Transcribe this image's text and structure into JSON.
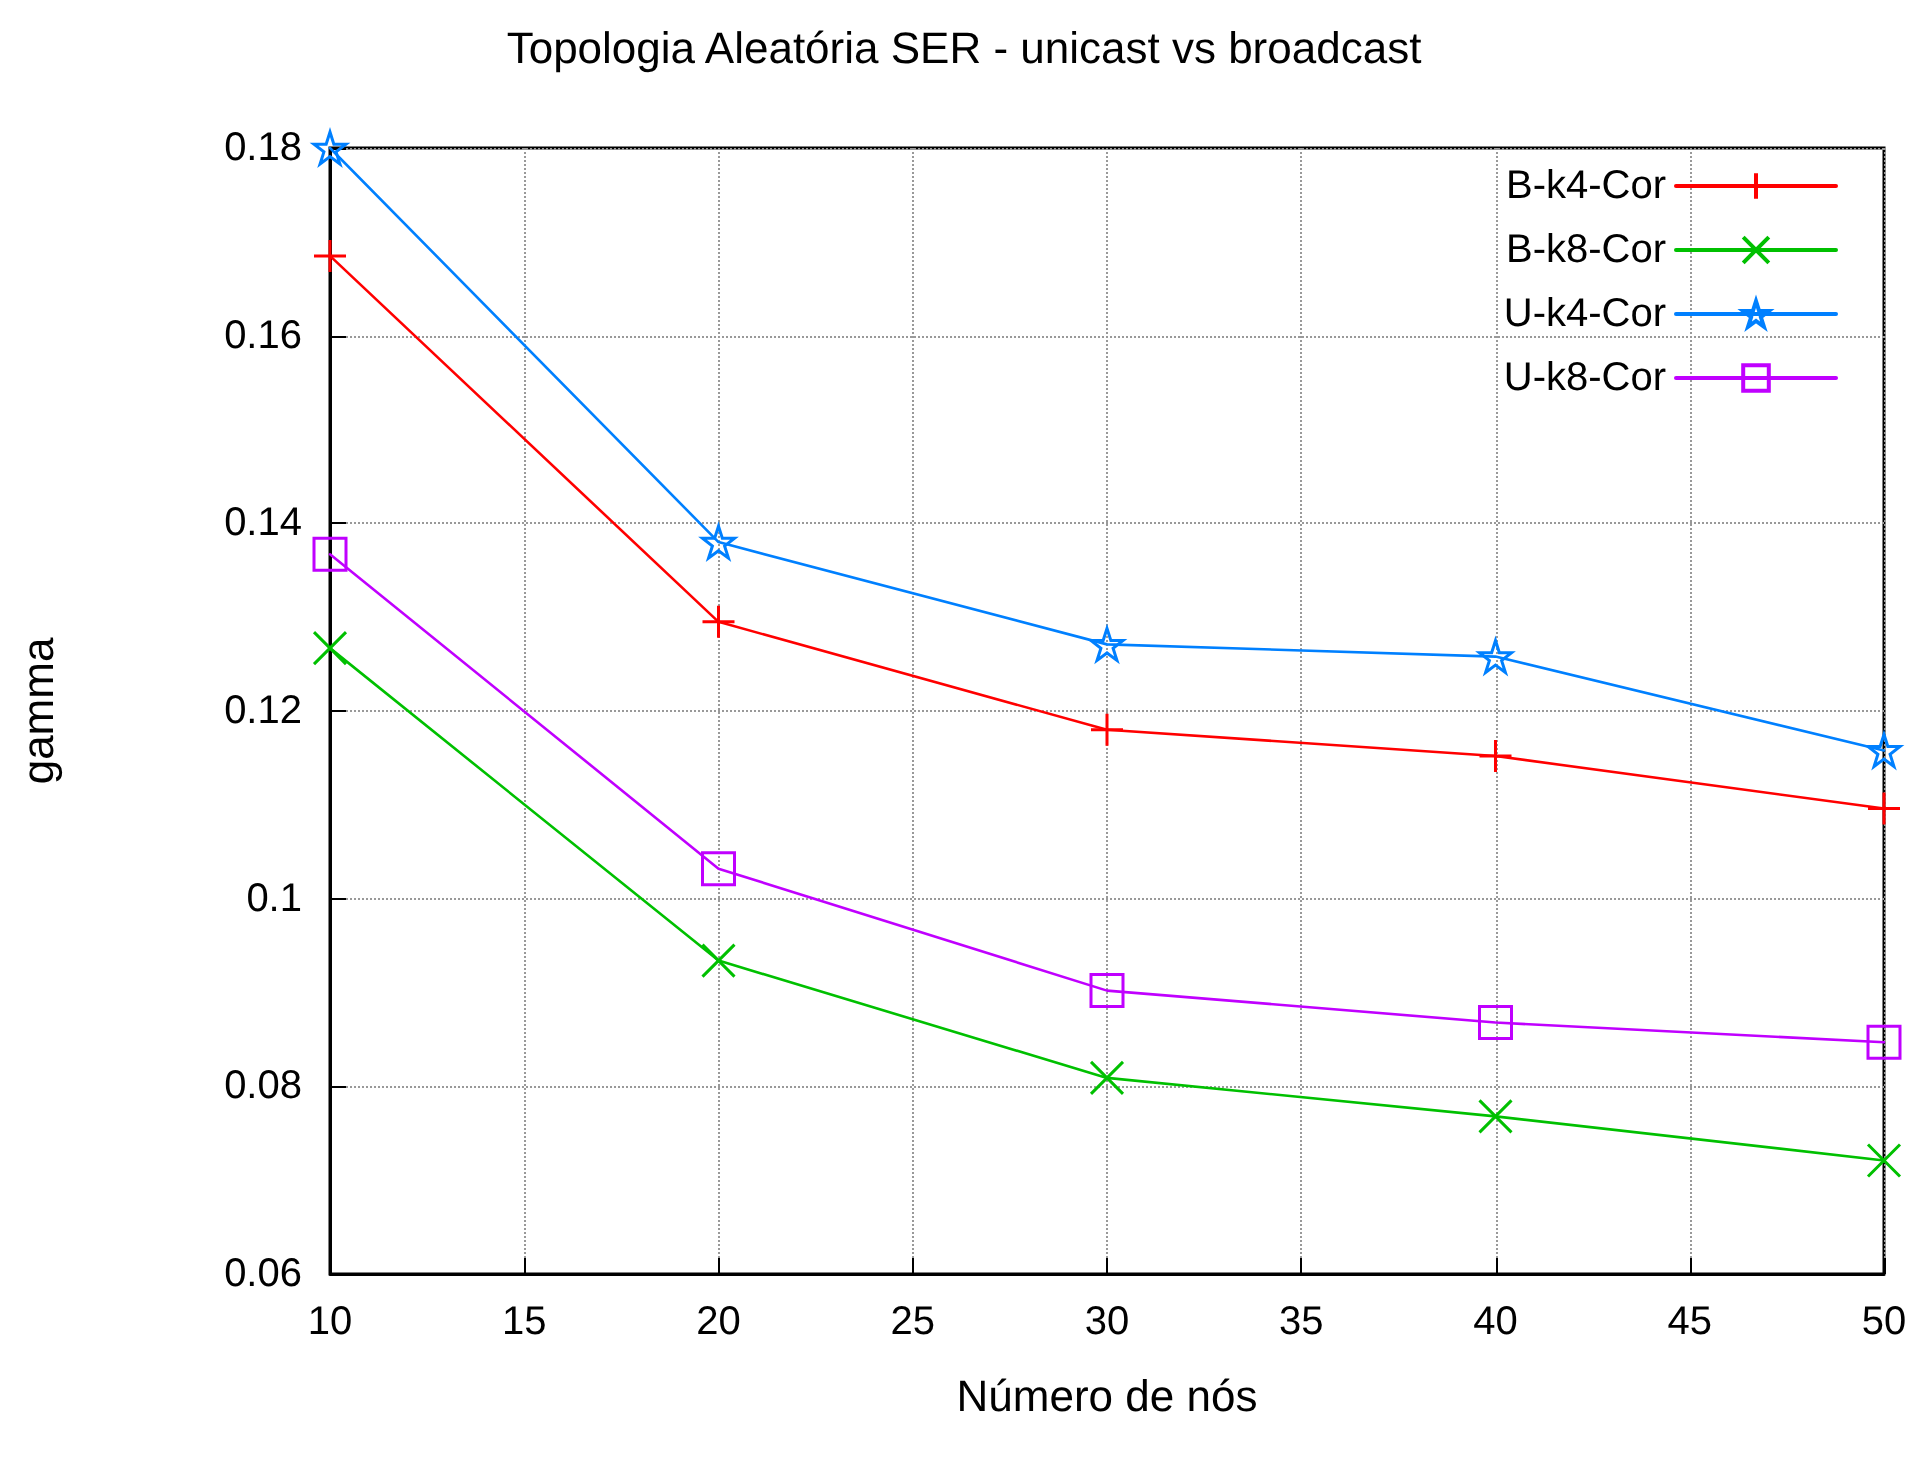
{
  "chart_data": {
    "type": "line",
    "title": "Topologia Aleatória SER - unicast vs broadcast",
    "xlabel": "Número de nós",
    "ylabel": "gamma",
    "x": [
      10,
      20,
      30,
      40,
      50
    ],
    "series": [
      {
        "name": "B-k4-Cor",
        "color": "#ff0000",
        "marker": "plus",
        "values": [
          0.1685,
          0.1295,
          0.118,
          0.1152,
          0.1096
        ]
      },
      {
        "name": "B-k8-Cor",
        "color": "#00c000",
        "marker": "cross",
        "values": [
          0.1267,
          0.0934,
          0.0809,
          0.0768,
          0.0721
        ]
      },
      {
        "name": "U-k4-Cor",
        "color": "#0080ff",
        "marker": "star",
        "values": [
          0.18,
          0.138,
          0.1271,
          0.1258,
          0.1158
        ]
      },
      {
        "name": "U-k8-Cor",
        "color": "#c000ff",
        "marker": "square",
        "values": [
          0.1367,
          0.1032,
          0.0902,
          0.0868,
          0.0847
        ]
      }
    ],
    "xlim": [
      10,
      50
    ],
    "xticks": [
      10,
      15,
      20,
      25,
      30,
      35,
      40,
      45,
      50
    ],
    "ylim": [
      0.06,
      0.18
    ],
    "yticks": [
      0.06,
      0.08,
      0.1,
      0.12,
      0.14,
      0.16,
      0.18
    ],
    "grid": true,
    "legend": "top right",
    "line_style": "solid"
  }
}
